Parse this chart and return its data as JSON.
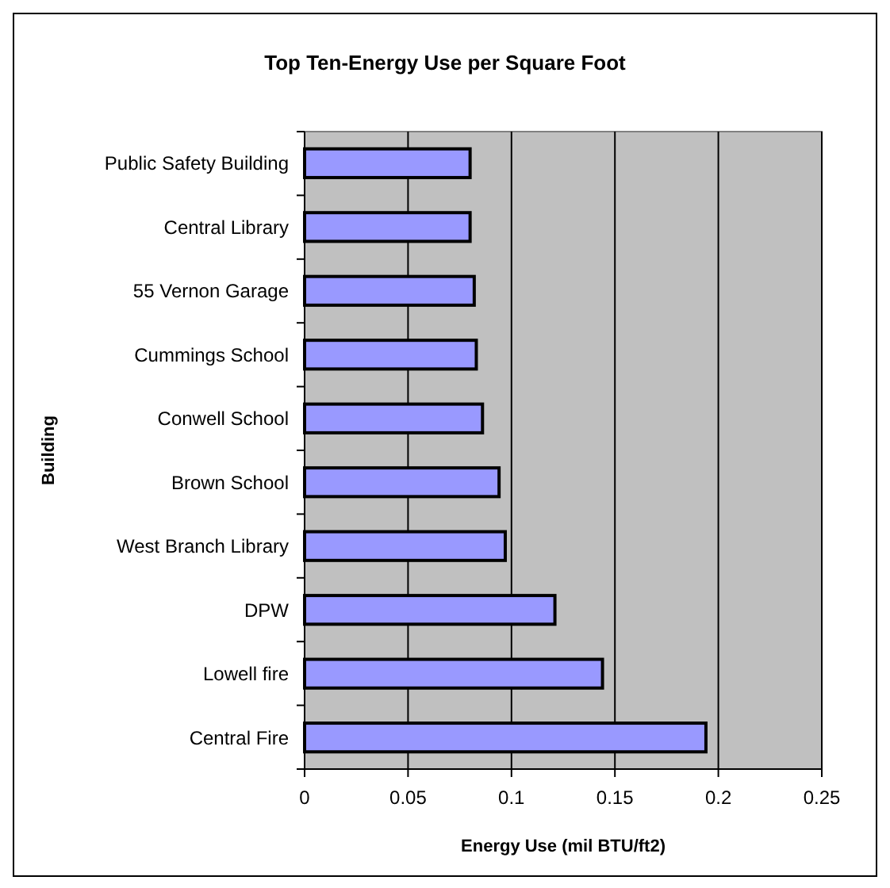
{
  "chart_data": {
    "type": "bar",
    "orientation": "horizontal",
    "title": "Top Ten-Energy Use per Square Foot",
    "xlabel": "Energy Use (mil BTU/ft2)",
    "ylabel": "Building",
    "categories": [
      "Public Safety Building",
      "Central Library",
      "55 Vernon Garage",
      "Cummings School",
      "Conwell School",
      "Brown School",
      "West Branch Library",
      "DPW",
      "Lowell fire",
      "Central Fire"
    ],
    "values": [
      0.08,
      0.08,
      0.082,
      0.083,
      0.086,
      0.094,
      0.097,
      0.121,
      0.144,
      0.194
    ],
    "color": "#9999ff",
    "xlim": [
      0,
      0.25
    ],
    "xticks": [
      0,
      0.05,
      0.1,
      0.15,
      0.2,
      0.25
    ],
    "grid": "x"
  }
}
